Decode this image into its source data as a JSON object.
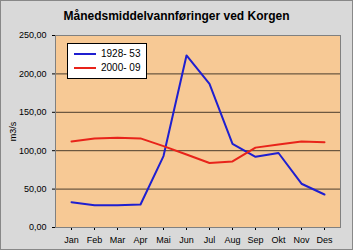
{
  "chart_data": {
    "type": "line",
    "title": "Månedsmiddelvannføringer ved Korgen",
    "y_label": "m3/s",
    "categories": [
      "Jan",
      "Feb",
      "Mar",
      "Apr",
      "Mai",
      "Jun",
      "Jul",
      "Aug",
      "Sep",
      "Okt",
      "Nov",
      "Des"
    ],
    "series": [
      {
        "name": "1928- 53",
        "color": "#1f1fd0",
        "values": [
          33,
          29,
          29,
          30,
          93,
          224,
          187,
          109,
          92,
          97,
          57,
          43
        ]
      },
      {
        "name": "2000- 09",
        "color": "#e8231a",
        "values": [
          112,
          116,
          117,
          116,
          106,
          95,
          84,
          86,
          104,
          108,
          112,
          111
        ]
      }
    ],
    "ylim": [
      0,
      250
    ],
    "yticks": [
      {
        "value": 0,
        "label": "0,00"
      },
      {
        "value": 50,
        "label": "50,00"
      },
      {
        "value": 100,
        "label": "100,00"
      },
      {
        "value": 150,
        "label": "150,00"
      },
      {
        "value": 200,
        "label": "200,00"
      },
      {
        "value": 250,
        "label": "250,00"
      }
    ],
    "grid": true,
    "legend": "upper left",
    "marker": "none"
  }
}
